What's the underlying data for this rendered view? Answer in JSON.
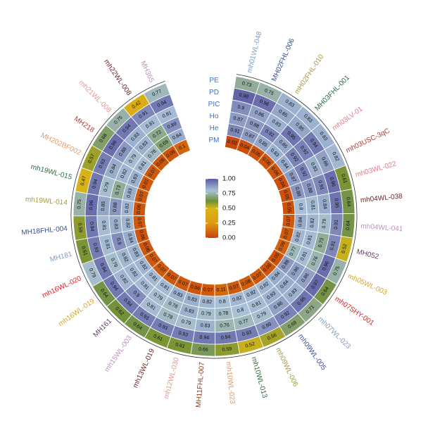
{
  "chart_data": {
    "type": "heatmap",
    "layout": "circular",
    "rows": [
      "PE",
      "PD",
      "PIC",
      "Ho",
      "He",
      "PM"
    ],
    "colorbar": {
      "min": 0,
      "max": 1,
      "ticks": [
        "0.00",
        "0.25",
        "0.50",
        "0.75",
        "1.00"
      ]
    },
    "palette": [
      "#c8410b",
      "#e09a10",
      "#d7b618",
      "#6f8f3a",
      "#a8c0d6",
      "#5a5aa2"
    ],
    "markers": [
      {
        "name": "mh01WL-048",
        "color": "#7a9cc0",
        "values": [
          0.73,
          0.98,
          0.9,
          0.87,
          0.91,
          0.02
        ]
      },
      {
        "name": "MH02FHL-006",
        "color": "#3a4f8f",
        "values": [
          0.75,
          0.96,
          0.86,
          0.88,
          0.87,
          0.04
        ]
      },
      {
        "name": "mH02FHL-010",
        "color": "#a59a43",
        "values": [
          0.83,
          0.85,
          0.83,
          0.92,
          0.85,
          0.05
        ]
      },
      {
        "name": "MH03FHL-001",
        "color": "#2f6b3e",
        "values": [
          0.83,
          0.85,
          0.95,
          0.85,
          0.83,
          0.06
        ]
      },
      {
        "name": "mh03LV-01",
        "color": "#e07a8a",
        "values": [
          0.83,
          0.94,
          0.92,
          0.92,
          0.84,
          0.06
        ]
      },
      {
        "name": "mh03USC-3qC",
        "color": "#b23b3b",
        "values": [
          0.82,
          0.86,
          0.83,
          0.92,
          0.87,
          0.04
        ]
      },
      {
        "name": "mh03WL-022",
        "color": "#e07a8a",
        "values": [
          0.61,
          0.96,
          0.91,
          0.88,
          0.88,
          0.05
        ]
      },
      {
        "name": "mh04WL-038",
        "color": "#6b2a2a",
        "values": [
          0.64,
          0.95,
          0.84,
          0.81,
          0.8,
          0.05
        ]
      },
      {
        "name": "mh04WL-041",
        "color": "#c28fbf",
        "values": [
          0.64,
          0.91,
          0.79,
          0.82,
          0.84,
          0.07
        ]
      },
      {
        "name": "MH052",
        "color": "#6b3b6b",
        "values": [
          0.52,
          0.91,
          0.73,
          0.81,
          0.82,
          0.07
        ]
      },
      {
        "name": "mh05WL-003",
        "color": "#d3a52a",
        "values": [
          0.75,
          0.96,
          0.76,
          0.81,
          0.77,
          0.09
        ]
      },
      {
        "name": "mh07SHY-001",
        "color": "#e0201f",
        "values": [
          0.64,
          0.97,
          0.86,
          0.86,
          0.88,
          0.05
        ]
      },
      {
        "name": "mh07WL-023",
        "color": "#7a9cc0",
        "values": [
          0.71,
          0.95,
          0.83,
          0.84,
          0.84,
          0.06
        ]
      },
      {
        "name": "mh09WL-005",
        "color": "#3a4f8f",
        "values": [
          0.68,
          0.92,
          0.86,
          0.83,
          0.82,
          0.07
        ]
      },
      {
        "name": "mh09WL-006",
        "color": "#a59a43",
        "values": [
          0.56,
          0.89,
          0.79,
          0.81,
          0.82,
          0.08
        ]
      },
      {
        "name": "mh10WL-013",
        "color": "#2f6b3e",
        "values": [
          0.52,
          0.93,
          0.77,
          0.8,
          0.82,
          0.07
        ]
      },
      {
        "name": "mh10WL-023",
        "color": "#e09a6a",
        "values": [
          0.59,
          0.94,
          0.76,
          0.78,
          0.8,
          0.11
        ]
      },
      {
        "name": "MH11FHL-007",
        "color": "#8a3a1a",
        "values": [
          0.66,
          0.94,
          0.83,
          0.79,
          0.82,
          0.07
        ]
      },
      {
        "name": "mh12WL-030",
        "color": "#e09a8a",
        "values": [
          0.61,
          0.93,
          0.79,
          0.83,
          0.83,
          0.06
        ]
      },
      {
        "name": "mh13WL-019",
        "color": "#6b2a2a",
        "values": [
          0.61,
          0.93,
          0.78,
          0.78,
          0.83,
          0.07
        ]
      },
      {
        "name": "mh15WL-003",
        "color": "#c28fbf",
        "values": [
          0.64,
          0.93,
          0.81,
          0.79,
          0.81,
          0.07
        ]
      },
      {
        "name": "MH161",
        "color": "#6b3b6b",
        "values": [
          0.62,
          0.94,
          0.9,
          0.81,
          0.81,
          0.07
        ]
      },
      {
        "name": "mh16WL-019",
        "color": "#d3a52a",
        "values": [
          0.64,
          0.94,
          0.82,
          0.82,
          0.82,
          0.07
        ]
      },
      {
        "name": "mh16WL-020",
        "color": "#e0201f",
        "values": [
          0.79,
          0.94,
          0.79,
          0.82,
          0.83,
          0.06
        ]
      },
      {
        "name": "MH181",
        "color": "#7a9cc0",
        "values": [
          0.61,
          0.93,
          0.81,
          0.9,
          0.84,
          0.06
        ]
      },
      {
        "name": "MH18FHL-004",
        "color": "#3a4f8f",
        "values": [
          0.59,
          0.94,
          0.81,
          0.83,
          0.82,
          0.07
        ]
      },
      {
        "name": "mh19WL-014",
        "color": "#a59a43",
        "values": [
          0.75,
          0.96,
          0.85,
          0.88,
          0.82,
          0.06
        ]
      },
      {
        "name": "mh19WL-015",
        "color": "#2f6b3e",
        "values": [
          0.47,
          0.94,
          0.79,
          0.73,
          0.83,
          0.07
        ]
      },
      {
        "name": "MH202BF002",
        "color": "#e09a6a",
        "values": [
          0.57,
          0.93,
          0.84,
          0.82,
          0.83,
          0.07
        ]
      },
      {
        "name": "MH218",
        "color": "#b23b3b",
        "values": [
          0.68,
          0.96,
          0.88,
          0.79,
          0.81,
          0.07
        ]
      },
      {
        "name": "mh21WL-008",
        "color": "#e09a8a",
        "values": [
          0.75,
          0.94,
          0.83,
          0.83,
          0.78,
          0.06
        ]
      },
      {
        "name": "mh22WL-008",
        "color": "#6b2a2a",
        "values": [
          0.42,
          0.91,
          0.81,
          0.72,
          0.69,
          0.06
        ]
      },
      {
        "name": "MH365",
        "color": "#c28fbf",
        "values": [
          0.77,
          0.94,
          0.81,
          0.89,
          0.84,
          0.1
        ]
      }
    ]
  }
}
